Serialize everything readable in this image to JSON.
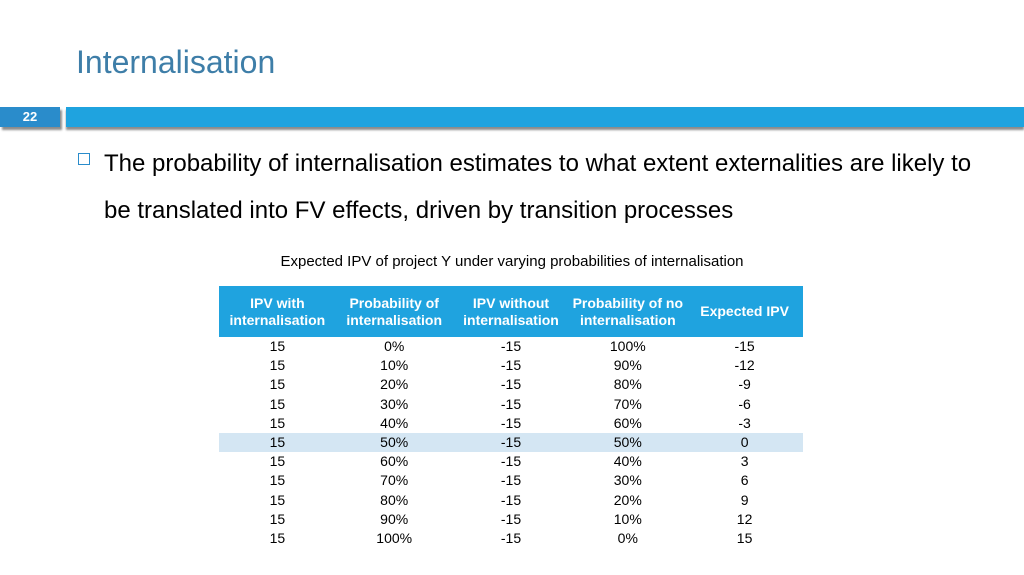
{
  "slide": {
    "title": "Internalisation",
    "number": "22",
    "bullet": "The probability of internalisation estimates to what extent externalities are likely to be translated into FV effects, driven by transition processes"
  },
  "table": {
    "caption": "Expected IPV of project Y under varying probabilities of internalisation",
    "headers": [
      "IPV with internalisation",
      "Probability of internalisation",
      "IPV without internalisation",
      "Probability of no internalisation",
      "Expected IPV"
    ],
    "rows": [
      [
        "15",
        "0%",
        "-15",
        "100%",
        "-15"
      ],
      [
        "15",
        "10%",
        "-15",
        "90%",
        "-12"
      ],
      [
        "15",
        "20%",
        "-15",
        "80%",
        "-9"
      ],
      [
        "15",
        "30%",
        "-15",
        "70%",
        "-6"
      ],
      [
        "15",
        "40%",
        "-15",
        "60%",
        "-3"
      ],
      [
        "15",
        "50%",
        "-15",
        "50%",
        "0"
      ],
      [
        "15",
        "60%",
        "-15",
        "40%",
        "3"
      ],
      [
        "15",
        "70%",
        "-15",
        "30%",
        "6"
      ],
      [
        "15",
        "80%",
        "-15",
        "20%",
        "9"
      ],
      [
        "15",
        "90%",
        "-15",
        "10%",
        "12"
      ],
      [
        "15",
        "100%",
        "-15",
        "0%",
        "15"
      ]
    ],
    "highlighted_row": 5
  },
  "colors": {
    "title": "#3e7ea8",
    "accent_bar": "#1fa3df",
    "header_bg": "#1fa3df",
    "highlight_row": "#d4e6f3"
  }
}
